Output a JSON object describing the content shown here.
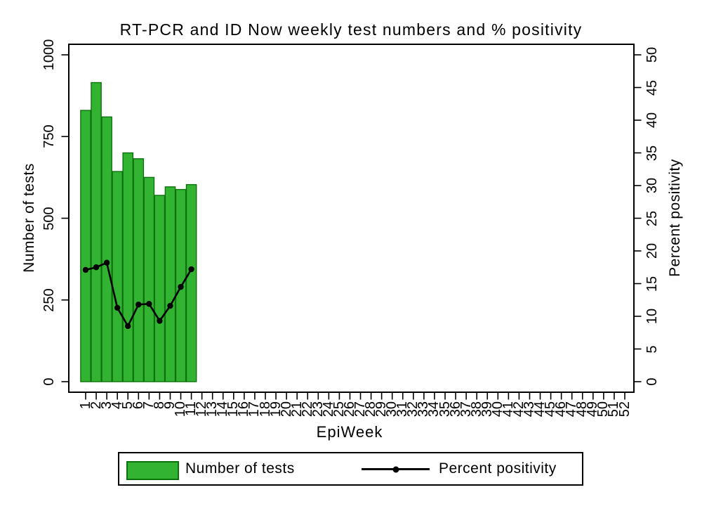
{
  "chart_data": {
    "type": "bar",
    "title": "RT-PCR and ID Now weekly test numbers and % positivity",
    "xlabel": "EpiWeek",
    "ylabel": "Number of tests",
    "y2label": "Percent positivity",
    "x_categories": [
      "1",
      "2",
      "3",
      "4",
      "5",
      "6",
      "7",
      "8",
      "9",
      "10",
      "11",
      "12",
      "13",
      "14",
      "15",
      "16",
      "17",
      "18",
      "19",
      "20",
      "21",
      "22",
      "23",
      "24",
      "25",
      "26",
      "27",
      "28",
      "29",
      "30",
      "31",
      "32",
      "33",
      "34",
      "35",
      "36",
      "37",
      "38",
      "39",
      "40",
      "41",
      "42",
      "43",
      "44",
      "45",
      "46",
      "47",
      "48",
      "49",
      "50",
      "51",
      "52"
    ],
    "y_ticks": [
      "0",
      "250",
      "500",
      "750",
      "1000"
    ],
    "y2_ticks": [
      "0",
      "5",
      "10",
      "15",
      "20",
      "25",
      "30",
      "35",
      "40",
      "45",
      "50"
    ],
    "ylim": [
      0,
      1000
    ],
    "y2lim": [
      0,
      50
    ],
    "grid": false,
    "legend_position": "bottom",
    "series": [
      {
        "name": "Number of tests",
        "type": "bar",
        "axis": "left",
        "fill": "#32b432",
        "stroke": "#0c720c",
        "weeks": [
          1,
          2,
          3,
          4,
          5,
          6,
          7,
          8,
          9,
          10,
          11
        ],
        "values": [
          830,
          915,
          810,
          643,
          700,
          682,
          625,
          570,
          596,
          588,
          603
        ]
      },
      {
        "name": "Percent positivity",
        "type": "line",
        "axis": "right",
        "color": "#000000",
        "weeks": [
          1,
          2,
          3,
          4,
          5,
          6,
          7,
          8,
          9,
          10,
          11
        ],
        "values": [
          17.1,
          17.5,
          18.2,
          11.3,
          8.5,
          11.8,
          11.9,
          9.3,
          11.6,
          14.5,
          17.2
        ]
      }
    ]
  }
}
